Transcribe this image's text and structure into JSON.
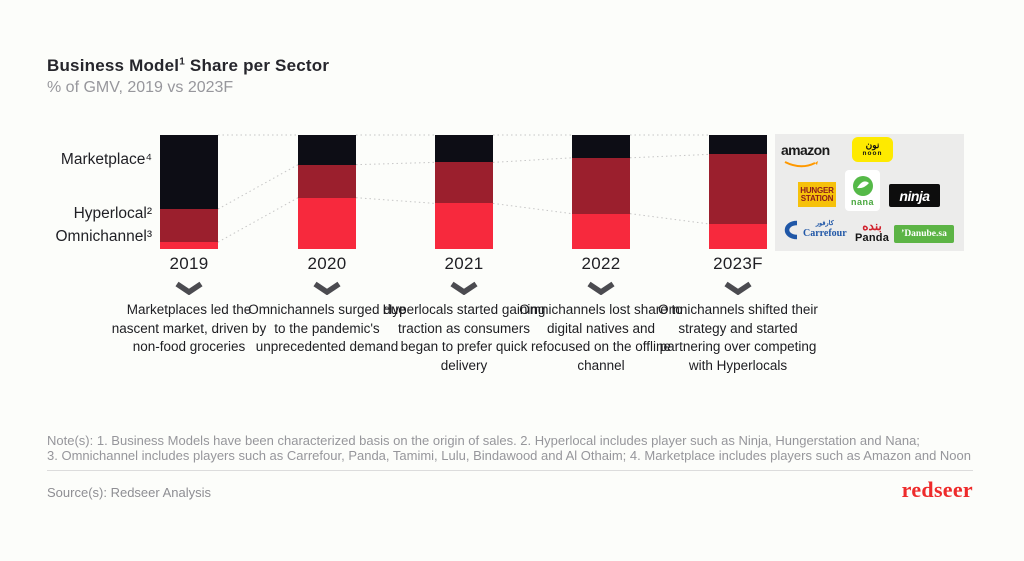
{
  "header": {
    "title_main": "Business Model",
    "title_sup": "1",
    "title_rest": " Share per Sector",
    "subtitle": "% of GMV, 2019 vs 2023F"
  },
  "chart_data": {
    "type": "bar",
    "stacked": true,
    "title": "Business Model Share per Sector",
    "unit": "% of GMV",
    "ylim": [
      0,
      100
    ],
    "grid": false,
    "legend_position": "left-row-labels",
    "categories": [
      "2019",
      "2020",
      "2021",
      "2022",
      "2023F"
    ],
    "series": [
      {
        "name": "Marketplace⁴",
        "stack_position": "top",
        "color": "#0d0d15",
        "values": [
          65,
          26,
          24,
          20,
          17
        ]
      },
      {
        "name": "Hyperlocal²",
        "stack_position": "middle",
        "color": "#9b1f2d",
        "values": [
          29,
          29,
          36,
          49,
          61
        ]
      },
      {
        "name": "Omnichannel³",
        "stack_position": "bottom",
        "color": "#f7293d",
        "values": [
          6,
          45,
          40,
          31,
          22
        ]
      }
    ],
    "connectors": "dotted lines join segment boundaries between adjacent bars"
  },
  "annotations": [
    {
      "year": "2019",
      "text": "Marketplaces led the nascent market, driven by non-food groceries"
    },
    {
      "year": "2020",
      "text": "Omnichannels surged due to the pandemic's unprecedented demand"
    },
    {
      "year": "2021",
      "text": "Hyperlocals started gaining traction as consumers began to prefer quick delivery"
    },
    {
      "year": "2022",
      "text": "Omnichannels lost share to digital natives and refocused on the offline channel"
    },
    {
      "year": "2023F",
      "text": "Omnichannels shifted their strategy and started partnering over competing with Hyperlocals"
    }
  ],
  "logo_panel": {
    "amazon": {
      "text": "amazon"
    },
    "noon": {
      "arabic": "نون",
      "text": "noon"
    },
    "hungerstation": {
      "line1": "HUNGER",
      "line2": "STATION"
    },
    "nana": {
      "text": "nana"
    },
    "ninja": {
      "text": "ninja"
    },
    "carrefour": {
      "arabic": "كارفور",
      "text": "Carrefour"
    },
    "panda": {
      "arabic": "بنده",
      "text": "Panda"
    },
    "danube": {
      "text": "’Danube.sa"
    }
  },
  "footer": {
    "notes_line1": "Note(s): 1. Business Models have been characterized basis on the origin of sales. 2. Hyperlocal includes player such as Ninja, Hungerstation and Nana;",
    "notes_line2": "3. Omnichannel includes players such as Carrefour, Panda, Tamimi, Lulu, Bindawood and Al Othaim; 4. Marketplace includes players such as Amazon and Noon",
    "source": "Source(s): Redseer Analysis",
    "brand": "redseer"
  }
}
